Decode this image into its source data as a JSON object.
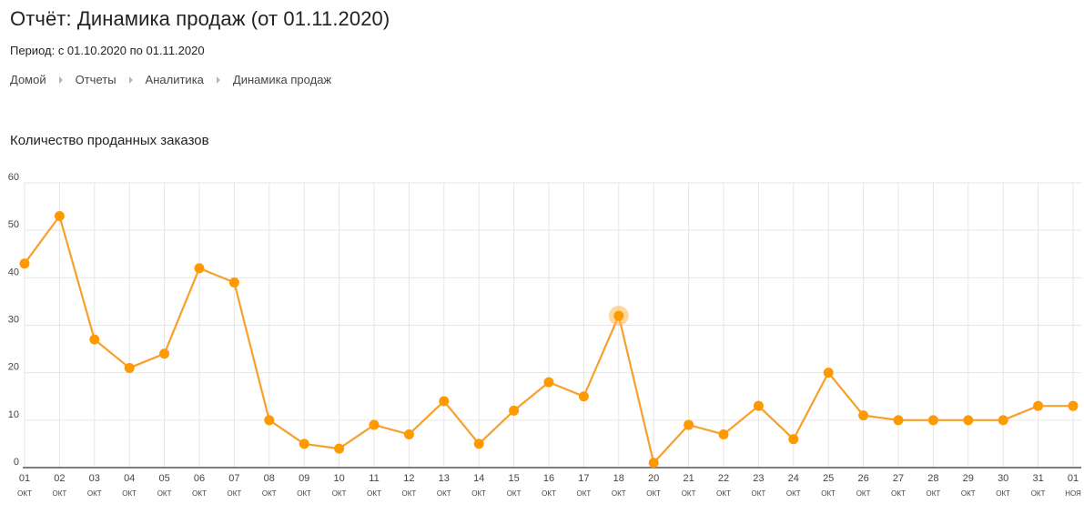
{
  "header": {
    "title": "Отчёт: Динамика продаж (от 01.11.2020)",
    "period": "Период: с 01.10.2020 по 01.11.2020"
  },
  "breadcrumb": [
    "Домой",
    "Отчеты",
    "Аналитика",
    "Динамика продаж"
  ],
  "colors": {
    "line": "#f7a02b",
    "marker": "#ff9900",
    "highlight": "#ffb84d"
  },
  "chart_data": {
    "type": "line",
    "title": "Количество проданных заказов",
    "xlabel": "",
    "ylabel": "",
    "ylim": [
      0,
      60
    ],
    "yticks": [
      0,
      10,
      20,
      30,
      40,
      50,
      60
    ],
    "grid": true,
    "categories": [
      {
        "day": "01",
        "month": "ОКТ"
      },
      {
        "day": "02",
        "month": "ОКТ"
      },
      {
        "day": "03",
        "month": "ОКТ"
      },
      {
        "day": "04",
        "month": "ОКТ"
      },
      {
        "day": "05",
        "month": "ОКТ"
      },
      {
        "day": "06",
        "month": "ОКТ"
      },
      {
        "day": "07",
        "month": "ОКТ"
      },
      {
        "day": "08",
        "month": "ОКТ"
      },
      {
        "day": "09",
        "month": "ОКТ"
      },
      {
        "day": "10",
        "month": "ОКТ"
      },
      {
        "day": "11",
        "month": "ОКТ"
      },
      {
        "day": "12",
        "month": "ОКТ"
      },
      {
        "day": "13",
        "month": "ОКТ"
      },
      {
        "day": "14",
        "month": "ОКТ"
      },
      {
        "day": "15",
        "month": "ОКТ"
      },
      {
        "day": "16",
        "month": "ОКТ"
      },
      {
        "day": "17",
        "month": "ОКТ"
      },
      {
        "day": "18",
        "month": "ОКТ"
      },
      {
        "day": "20",
        "month": "ОКТ"
      },
      {
        "day": "21",
        "month": "ОКТ"
      },
      {
        "day": "22",
        "month": "ОКТ"
      },
      {
        "day": "23",
        "month": "ОКТ"
      },
      {
        "day": "24",
        "month": "ОКТ"
      },
      {
        "day": "25",
        "month": "ОКТ"
      },
      {
        "day": "26",
        "month": "ОКТ"
      },
      {
        "day": "27",
        "month": "ОКТ"
      },
      {
        "day": "28",
        "month": "ОКТ"
      },
      {
        "day": "29",
        "month": "ОКТ"
      },
      {
        "day": "30",
        "month": "ОКТ"
      },
      {
        "day": "31",
        "month": "ОКТ"
      },
      {
        "day": "01",
        "month": "НОЯ"
      }
    ],
    "series": [
      {
        "values": [
          43,
          53,
          27,
          21,
          24,
          42,
          39,
          10,
          5,
          4,
          9,
          7,
          14,
          5,
          12,
          18,
          15,
          32,
          1,
          9,
          7,
          13,
          6,
          20,
          11,
          10,
          10,
          10,
          10,
          13,
          13
        ]
      }
    ],
    "highlighted_index": 17
  }
}
